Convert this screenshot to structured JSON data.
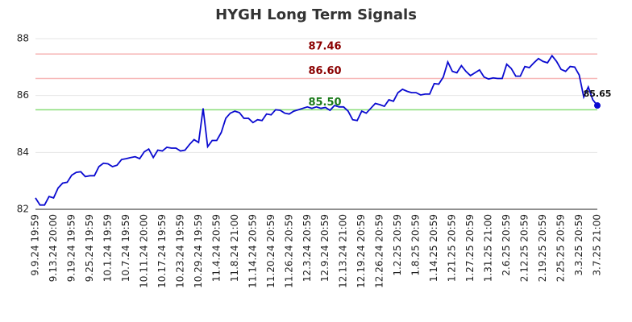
{
  "chart_data": {
    "type": "line",
    "title": "HYGH Long Term Signals",
    "categories": [
      "9.9.24 19:59",
      null,
      null,
      null,
      "9.13.24 20:00",
      null,
      null,
      null,
      "9.19.24 19:59",
      null,
      null,
      null,
      "9.25.24 19:59",
      null,
      null,
      null,
      "10.1.24 19:59",
      null,
      null,
      null,
      "10.7.24 19:59",
      null,
      null,
      null,
      "10.11.24 20:00",
      null,
      null,
      null,
      "10.17.24 19:59",
      null,
      null,
      null,
      "10.23.24 19:59",
      null,
      null,
      null,
      "10.29.24 19:59",
      null,
      null,
      null,
      "11.4.24 20:59",
      null,
      null,
      null,
      "11.8.24 21:00",
      null,
      null,
      null,
      "11.14.24 20:59",
      null,
      null,
      null,
      "11.20.24 20:59",
      null,
      null,
      null,
      "11.26.24 20:59",
      null,
      null,
      null,
      "12.3.24 20:59",
      null,
      null,
      null,
      "12.9.24 20:59",
      null,
      null,
      null,
      "12.13.24 21:00",
      null,
      null,
      null,
      "12.19.24 20:59",
      null,
      null,
      null,
      "12.26.24 20:59",
      null,
      null,
      null,
      "1.2.25 20:59",
      null,
      null,
      null,
      "1.8.25 20:59",
      null,
      null,
      null,
      "1.14.25 20:59",
      null,
      null,
      null,
      "1.21.25 20:59",
      null,
      null,
      null,
      "1.27.25 20:59",
      null,
      null,
      null,
      "1.31.25 21:00",
      null,
      null,
      null,
      "2.6.25 20:59",
      null,
      null,
      null,
      "2.12.25 20:59",
      null,
      null,
      null,
      "2.19.25 20:59",
      null,
      null,
      null,
      "2.25.25 20:59",
      null,
      null,
      null,
      "3.3.25 20:59",
      null,
      null,
      null,
      "3.7.25 21:00"
    ],
    "series": [
      {
        "name": "HYGH",
        "color": "#0a0ad0",
        "values": [
          82.4,
          82.15,
          82.15,
          82.45,
          82.4,
          82.75,
          82.92,
          82.95,
          83.2,
          83.3,
          83.32,
          83.15,
          83.18,
          83.18,
          83.5,
          83.62,
          83.6,
          83.5,
          83.55,
          83.75,
          83.78,
          83.82,
          83.85,
          83.78,
          84.02,
          84.12,
          83.82,
          84.08,
          84.05,
          84.18,
          84.15,
          84.15,
          84.05,
          84.08,
          84.28,
          84.45,
          84.35,
          85.55,
          84.2,
          84.42,
          84.42,
          84.7,
          85.2,
          85.38,
          85.45,
          85.4,
          85.2,
          85.2,
          85.05,
          85.15,
          85.12,
          85.35,
          85.32,
          85.5,
          85.48,
          85.38,
          85.35,
          85.45,
          85.5,
          85.55,
          85.6,
          85.55,
          85.6,
          85.55,
          85.58,
          85.48,
          85.65,
          85.6,
          85.6,
          85.45,
          85.15,
          85.12,
          85.45,
          85.38,
          85.55,
          85.72,
          85.68,
          85.62,
          85.85,
          85.8,
          86.1,
          86.22,
          86.15,
          86.1,
          86.1,
          86.02,
          86.05,
          86.05,
          86.42,
          86.4,
          86.65,
          87.18,
          86.85,
          86.8,
          87.05,
          86.85,
          86.7,
          86.8,
          86.9,
          86.65,
          86.58,
          86.62,
          86.6,
          86.6,
          87.1,
          86.95,
          86.68,
          86.68,
          87.02,
          86.98,
          87.15,
          87.3,
          87.2,
          87.15,
          87.4,
          87.2,
          86.92,
          86.85,
          87.02,
          87.0,
          86.72,
          85.95,
          86.3,
          85.85,
          85.65
        ]
      }
    ],
    "reference_lines": [
      {
        "value": 87.46,
        "label": "87.46",
        "line_color": "#f7b8b8",
        "label_color": "#8b0000"
      },
      {
        "value": 86.6,
        "label": "86.60",
        "line_color": "#f7b8b8",
        "label_color": "#8b0000"
      },
      {
        "value": 85.5,
        "label": "85.50",
        "line_color": "#88dd77",
        "label_color": "#1a7a1a"
      }
    ],
    "ylim": [
      82,
      88
    ],
    "yticks": [
      82,
      84,
      86,
      88
    ],
    "grid": true
  }
}
